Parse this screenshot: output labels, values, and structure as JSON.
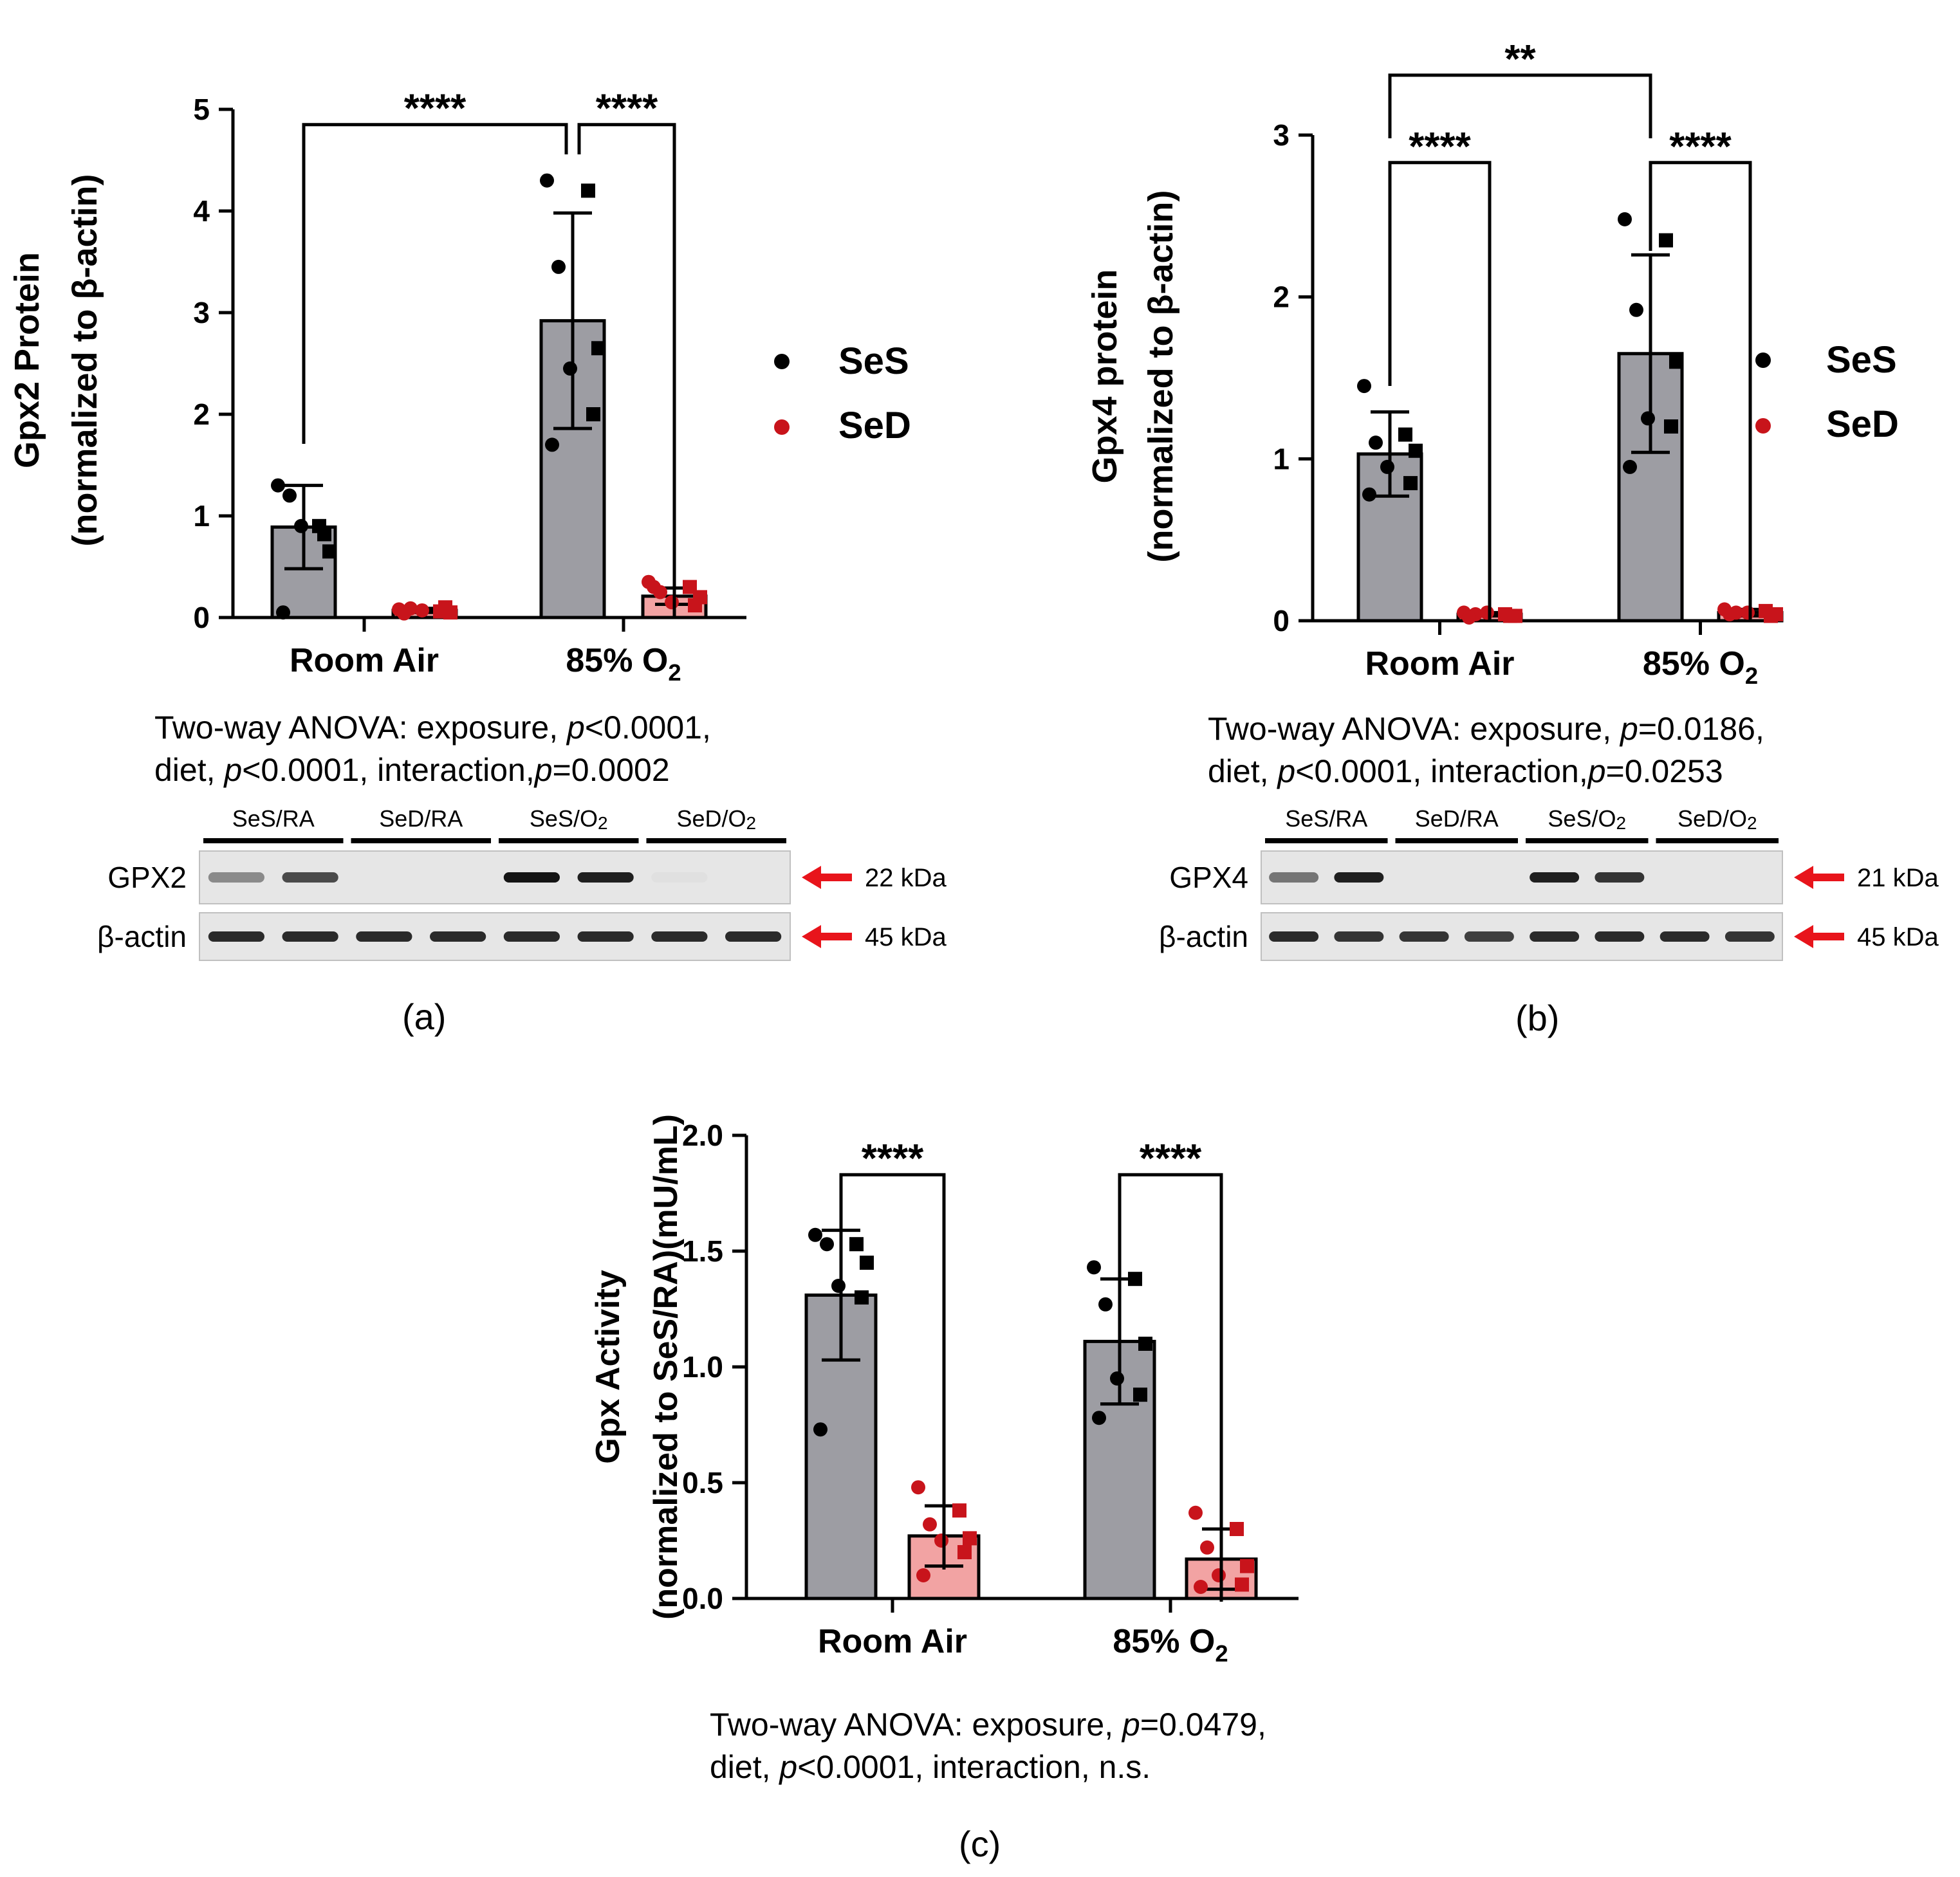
{
  "colors": {
    "ses_bar": "#9d9da3",
    "sed_bar": "#f2a3a3",
    "ses_point": "#000000",
    "sed_point": "#c8141b",
    "arrow": "#e8141b",
    "blot_bg": "#e6e6e6"
  },
  "legend": {
    "ses": "SeS",
    "sed": "SeD"
  },
  "panel_labels": {
    "a": "(a)",
    "b": "(b)",
    "c": "(c)"
  },
  "chart_data": [
    {
      "id": "a",
      "type": "bar",
      "ylabel_line1": "Gpx2 Protein",
      "ylabel_line2": "(normalized to β-actin)",
      "categories": [
        "Room Air",
        "85% O"
      ],
      "category_subscripts": [
        "",
        "2"
      ],
      "ylim": [
        0,
        5
      ],
      "yticks": [
        0,
        1,
        2,
        3,
        4,
        5
      ],
      "tick_labels": [
        "0",
        "1",
        "2",
        "3",
        "4",
        "5"
      ],
      "series": [
        {
          "name": "SeS",
          "values": [
            0.89,
            2.92
          ],
          "errors": [
            0.41,
            1.06
          ],
          "points": [
            [
              1.3,
              0.9,
              1.2,
              0.65,
              0.9,
              0.82,
              0.05
            ],
            [
              4.3,
              4.2,
              3.45,
              2.65,
              2.45,
              2.0,
              1.7
            ]
          ]
        },
        {
          "name": "SeD",
          "values": [
            0.07,
            0.21
          ],
          "errors": [
            0.02,
            0.08
          ],
          "points": [
            [
              0.08,
              0.06,
              0.09,
              0.05,
              0.07,
              0.1,
              0.04
            ],
            [
              0.35,
              0.3,
              0.25,
              0.2,
              0.15,
              0.12,
              0.3
            ]
          ]
        }
      ],
      "comparisons": [
        {
          "from": [
            0,
            0
          ],
          "to": [
            1,
            0
          ],
          "label": "****"
        },
        {
          "from": [
            1,
            0
          ],
          "to": [
            1,
            1
          ],
          "label": "****"
        }
      ],
      "anova_line1_pre": "Two-way ANOVA: exposure, ",
      "anova_line1_p": "p",
      "anova_line1_post": "<0.0001,",
      "anova_line2_pre": "diet, ",
      "anova_line2_p": "p",
      "anova_line2_mid": "<0.0001, interaction,",
      "anova_line2_p2": "p",
      "anova_line2_post": "=0.0002"
    },
    {
      "id": "b",
      "type": "bar",
      "ylabel_line1": "Gpx4 protein",
      "ylabel_line2": "(normalized to β-actin)",
      "categories": [
        "Room Air",
        "85% O"
      ],
      "category_subscripts": [
        "",
        "2"
      ],
      "ylim": [
        0,
        3
      ],
      "yticks": [
        0,
        1,
        2,
        3
      ],
      "tick_labels": [
        "0",
        "1",
        "2",
        "3"
      ],
      "series": [
        {
          "name": "SeS",
          "values": [
            1.03,
            1.65
          ],
          "errors": [
            0.26,
            0.61
          ],
          "points": [
            [
              1.45,
              1.15,
              1.1,
              1.05,
              0.95,
              0.85,
              0.78
            ],
            [
              2.48,
              2.35,
              1.92,
              1.6,
              1.25,
              1.2,
              0.95
            ]
          ]
        },
        {
          "name": "SeD",
          "values": [
            0.04,
            0.05
          ],
          "errors": [
            0.01,
            0.02
          ],
          "points": [
            [
              0.05,
              0.04,
              0.04,
              0.03,
              0.05,
              0.03,
              0.02
            ],
            [
              0.07,
              0.06,
              0.05,
              0.04,
              0.05,
              0.03,
              0.04
            ]
          ]
        }
      ],
      "comparisons": [
        {
          "from": [
            0,
            0
          ],
          "to": [
            0,
            1
          ],
          "label": "****"
        },
        {
          "from": [
            1,
            0
          ],
          "to": [
            1,
            1
          ],
          "label": "****"
        },
        {
          "from": [
            0,
            0
          ],
          "to": [
            1,
            0
          ],
          "label": "**"
        }
      ],
      "anova_line1_pre": "Two-way ANOVA: exposure, ",
      "anova_line1_p": "p",
      "anova_line1_post": "=0.0186,",
      "anova_line2_pre": "diet, ",
      "anova_line2_p": "p",
      "anova_line2_mid": "<0.0001, interaction,",
      "anova_line2_p2": "p",
      "anova_line2_post": "=0.0253"
    },
    {
      "id": "c",
      "type": "bar",
      "ylabel_line1": "Gpx Activity",
      "ylabel_line2": "(normalized to SeS/RA)(mU/mL)",
      "categories": [
        "Room Air",
        "85% O"
      ],
      "category_subscripts": [
        "",
        "2"
      ],
      "ylim": [
        0,
        2.0
      ],
      "yticks": [
        0,
        0.5,
        1.0,
        1.5,
        2.0
      ],
      "tick_labels": [
        "0.0",
        "0.5",
        "1.0",
        "1.5",
        "2.0"
      ],
      "series": [
        {
          "name": "SeS",
          "values": [
            1.31,
            1.11
          ],
          "errors": [
            0.28,
            0.27
          ],
          "points": [
            [
              1.57,
              1.53,
              1.53,
              1.45,
              1.35,
              1.3,
              0.73
            ],
            [
              1.43,
              1.38,
              1.27,
              1.1,
              0.95,
              0.88,
              0.78
            ]
          ]
        },
        {
          "name": "SeD",
          "values": [
            0.27,
            0.17
          ],
          "errors": [
            0.13,
            0.13
          ],
          "points": [
            [
              0.48,
              0.38,
              0.32,
              0.26,
              0.25,
              0.2,
              0.1
            ],
            [
              0.37,
              0.3,
              0.22,
              0.14,
              0.1,
              0.06,
              0.05
            ]
          ]
        }
      ],
      "comparisons": [
        {
          "from": [
            0,
            0
          ],
          "to": [
            0,
            1
          ],
          "label": "****"
        },
        {
          "from": [
            1,
            0
          ],
          "to": [
            1,
            1
          ],
          "label": "****"
        }
      ],
      "anova_line1_pre": "Two-way ANOVA: exposure, ",
      "anova_line1_p": "p",
      "anova_line1_post": "=0.0479,",
      "anova_line2_pre": "diet, ",
      "anova_line2_p": "p",
      "anova_line2_mid": "<0.0001, interaction, n.s.",
      "anova_line2_p2": "",
      "anova_line2_post": ""
    }
  ],
  "blots": [
    {
      "id": "a",
      "groups": [
        "SeS/RA",
        "SeD/RA",
        "SeS/O",
        "SeD/O"
      ],
      "group_subscripts": [
        "",
        "",
        "2",
        "2"
      ],
      "rows": [
        {
          "label": "GPX2",
          "kda": "22 kDa",
          "intensities": [
            0.45,
            0.75,
            0,
            0,
            1,
            0.95,
            0.05,
            0
          ]
        },
        {
          "label": "β-actin",
          "kda": "45 kDa",
          "intensities": [
            0.9,
            0.9,
            0.9,
            0.9,
            0.9,
            0.9,
            0.9,
            0.9
          ]
        }
      ]
    },
    {
      "id": "b",
      "groups": [
        "SeS/RA",
        "SeD/RA",
        "SeS/O",
        "SeD/O"
      ],
      "group_subscripts": [
        "",
        "",
        "2",
        "2"
      ],
      "rows": [
        {
          "label": "GPX4",
          "kda": "21 kDa",
          "intensities": [
            0.55,
            0.95,
            0,
            0,
            0.95,
            0.85,
            0,
            0
          ]
        },
        {
          "label": "β-actin",
          "kda": "45 kDa",
          "intensities": [
            0.9,
            0.85,
            0.85,
            0.8,
            0.9,
            0.9,
            0.9,
            0.85
          ]
        }
      ]
    }
  ]
}
